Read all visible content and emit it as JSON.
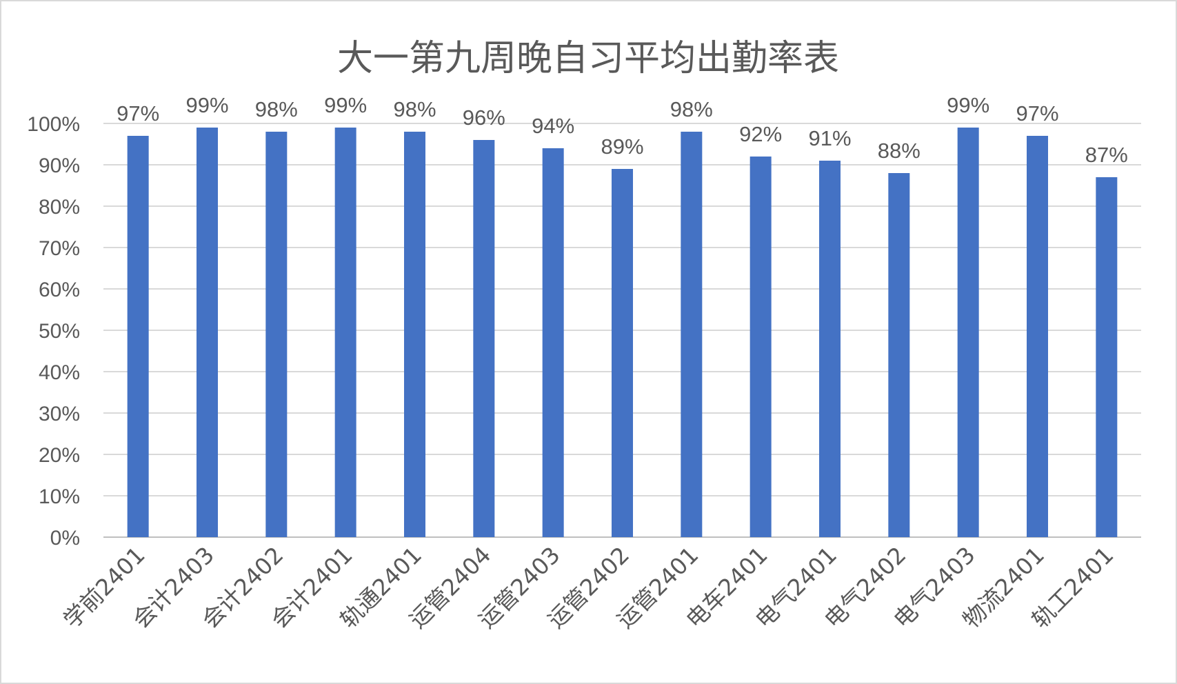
{
  "chart_data": {
    "type": "bar",
    "title": "大一第九周晚自习平均出勤率表",
    "categories": [
      "学前2401",
      "会计2403",
      "会计2402",
      "会计2401",
      "轨通2401",
      "运管2404",
      "运管2403",
      "运管2402",
      "运管2401",
      "电车2401",
      "电气2401",
      "电气2402",
      "电气2403",
      "物流2401",
      "轨工2401"
    ],
    "values": [
      97,
      99,
      98,
      99,
      98,
      96,
      94,
      89,
      98,
      92,
      91,
      88,
      99,
      97,
      87
    ],
    "data_labels": [
      "97%",
      "99%",
      "98%",
      "99%",
      "98%",
      "96%",
      "94%",
      "89%",
      "98%",
      "92%",
      "91%",
      "88%",
      "99%",
      "97%",
      "87%"
    ],
    "ylim": [
      0,
      100
    ],
    "yticks": [
      "0%",
      "10%",
      "20%",
      "30%",
      "40%",
      "50%",
      "60%",
      "70%",
      "80%",
      "90%",
      "100%"
    ],
    "grid": true,
    "legend": "none",
    "bar_color": "#4472c4"
  }
}
